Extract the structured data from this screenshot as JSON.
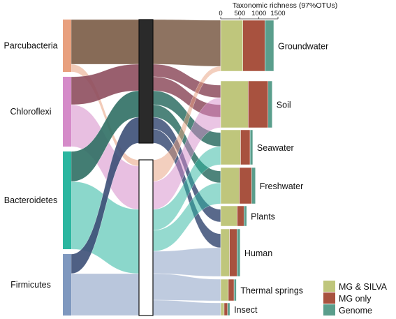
{
  "chart_data": {
    "type": "alluvial+stacked-bar",
    "axis_title": "Taxonomic richness (97%OTUs)",
    "xlim": [
      0,
      1500
    ],
    "ticks": [
      0,
      500,
      1000,
      1500
    ],
    "phyla": [
      {
        "name": "Parcubacteria",
        "color": "#E8A07E",
        "flow_color": "#7A5B45"
      },
      {
        "name": "Chloroflexi",
        "color": "#D58BC9",
        "flow_color": "#8E4E5E"
      },
      {
        "name": "Bacteroidetes",
        "color": "#2BB6A0",
        "flow_color": "#2F6F64"
      },
      {
        "name": "Firmicutes",
        "color": "#7F98BF",
        "flow_color": "#3C4F77"
      }
    ],
    "middle_groups": [
      {
        "name": "dark",
        "color": "#2A2A2A"
      },
      {
        "name": "light",
        "color": "#FFFFFF"
      }
    ],
    "legend": [
      {
        "label": "MG & SILVA",
        "color": "#BFC67C"
      },
      {
        "label": "MG only",
        "color": "#A8523F"
      },
      {
        "label": "Genome",
        "color": "#5A9E8C"
      }
    ],
    "categories": [
      "Groundwater",
      "Soil",
      "Seawater",
      "Freshwater",
      "Plants",
      "Human",
      "Thermal springs",
      "Insect"
    ],
    "series": [
      {
        "name": "MG & SILVA",
        "values": [
          580,
          720,
          520,
          490,
          430,
          230,
          200,
          90
        ]
      },
      {
        "name": "MG only",
        "values": [
          580,
          520,
          250,
          320,
          180,
          200,
          150,
          90
        ]
      },
      {
        "name": "Genome",
        "values": [
          230,
          110,
          70,
          100,
          70,
          80,
          60,
          60
        ]
      }
    ]
  }
}
